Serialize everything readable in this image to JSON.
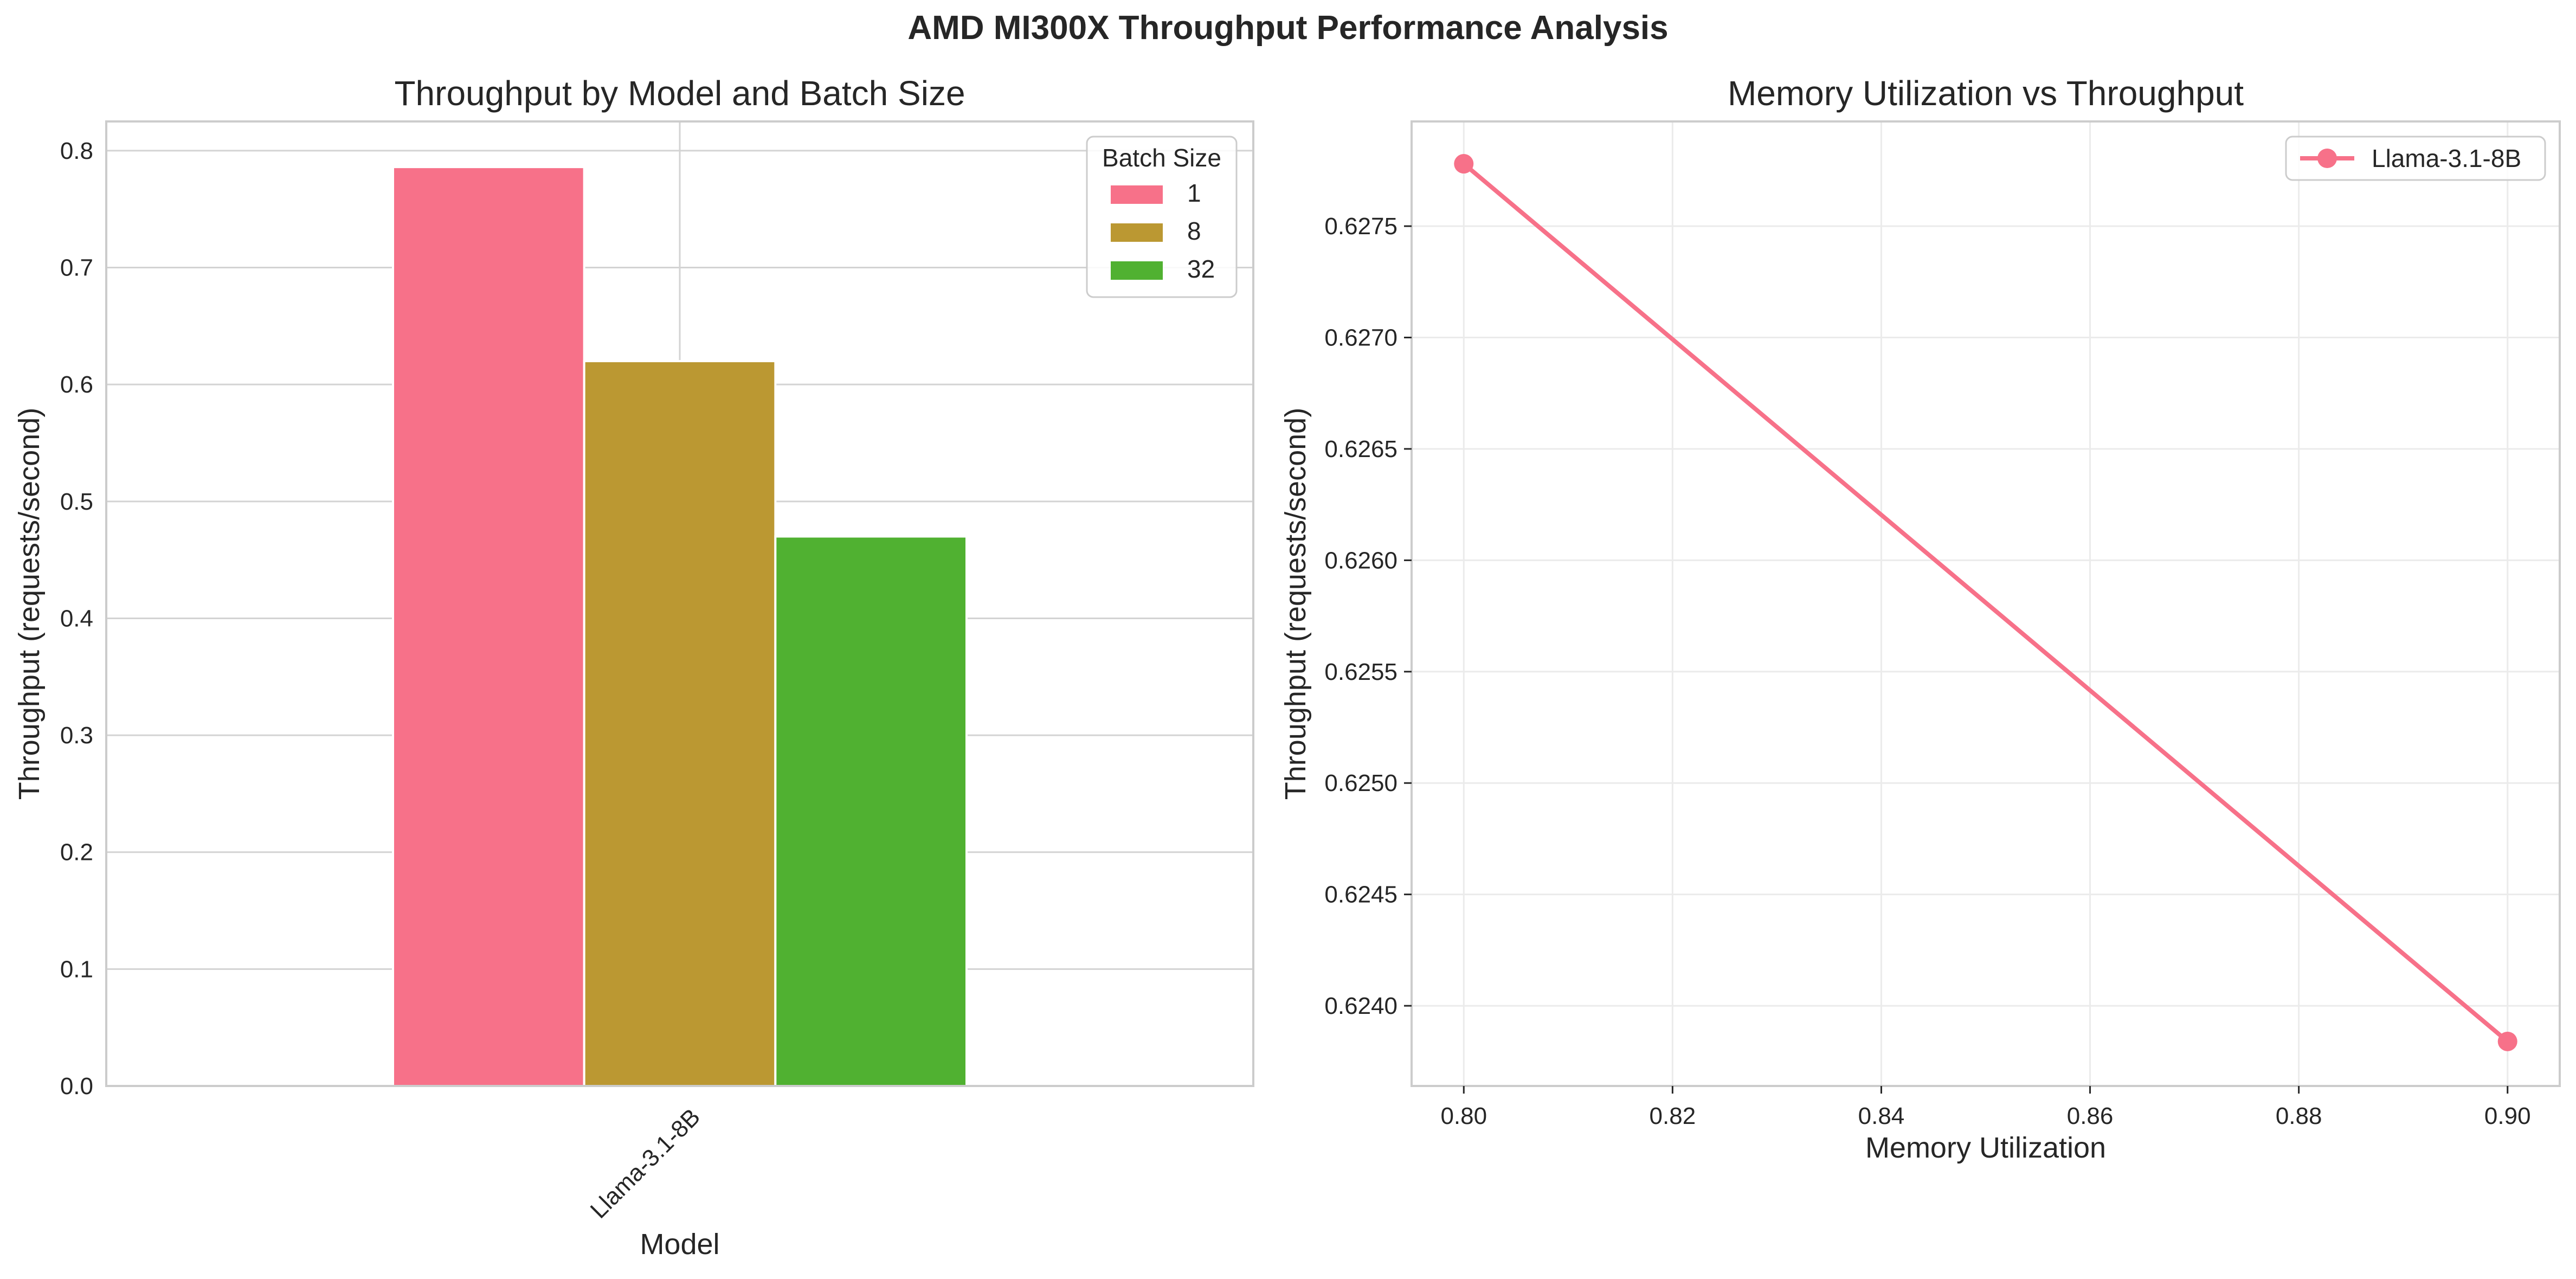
{
  "figure": {
    "title": "AMD MI300X Throughput Performance Analysis"
  },
  "chart_data": [
    {
      "type": "bar",
      "title": "Throughput by Model and Batch Size",
      "xlabel": "Model",
      "ylabel": "Throughput (requests/second)",
      "categories": [
        "Llama-3.1-8B"
      ],
      "series": [
        {
          "name": "1",
          "values": [
            0.786
          ],
          "color": "#f77189"
        },
        {
          "name": "8",
          "values": [
            0.62
          ],
          "color": "#bb9832"
        },
        {
          "name": "32",
          "values": [
            0.47
          ],
          "color": "#50b131"
        }
      ],
      "ylim": [
        0,
        0.825
      ],
      "yticks": [
        0.0,
        0.1,
        0.2,
        0.3,
        0.4,
        0.5,
        0.6,
        0.7,
        0.8
      ],
      "ytick_labels": [
        "0.0",
        "0.1",
        "0.2",
        "0.3",
        "0.4",
        "0.5",
        "0.6",
        "0.7",
        "0.8"
      ],
      "legend": {
        "title": "Batch Size",
        "position": "top-right"
      },
      "grid": true
    },
    {
      "type": "line",
      "title": "Memory Utilization vs Throughput",
      "xlabel": "Memory Utilization",
      "ylabel": "Throughput (requests/second)",
      "series": [
        {
          "name": "Llama-3.1-8B",
          "x": [
            0.8,
            0.9
          ],
          "y": [
            0.62778,
            0.62384
          ],
          "color": "#f77189",
          "marker": "circle"
        }
      ],
      "xlim": [
        0.795,
        0.905
      ],
      "ylim": [
        0.62364,
        0.62797
      ],
      "xticks": [
        0.8,
        0.82,
        0.84,
        0.86,
        0.88,
        0.9
      ],
      "xtick_labels": [
        "0.80",
        "0.82",
        "0.84",
        "0.86",
        "0.88",
        "0.90"
      ],
      "yticks": [
        0.624,
        0.6245,
        0.625,
        0.6255,
        0.626,
        0.6265,
        0.627,
        0.6275
      ],
      "ytick_labels": [
        "0.6240",
        "0.6245",
        "0.6250",
        "0.6255",
        "0.6260",
        "0.6265",
        "0.6270",
        "0.6275"
      ],
      "legend": {
        "position": "top-right"
      },
      "grid": true
    }
  ]
}
